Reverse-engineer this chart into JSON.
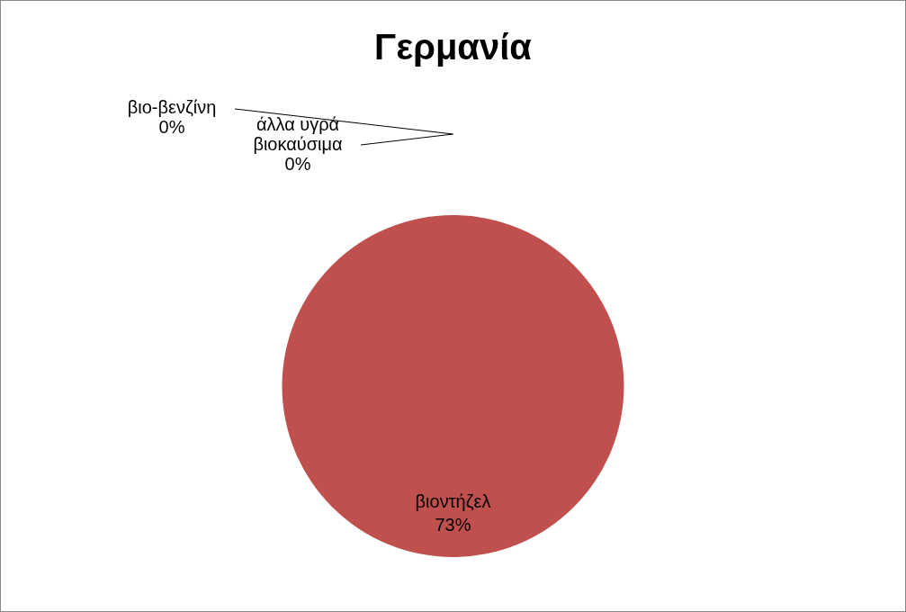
{
  "chart_data": {
    "type": "pie",
    "title": "Γερμανία",
    "categories": [
      "βιο-βενζίνη",
      "βιοντήζελ",
      "άλλα υγρά βιοκαύσιμα"
    ],
    "values": [
      0,
      73,
      0
    ],
    "colors": [
      "#4f81bd",
      "#c0504d",
      "#9bbb59"
    ],
    "value_labels": [
      "0%",
      "73%",
      "0%"
    ],
    "legend": false
  }
}
